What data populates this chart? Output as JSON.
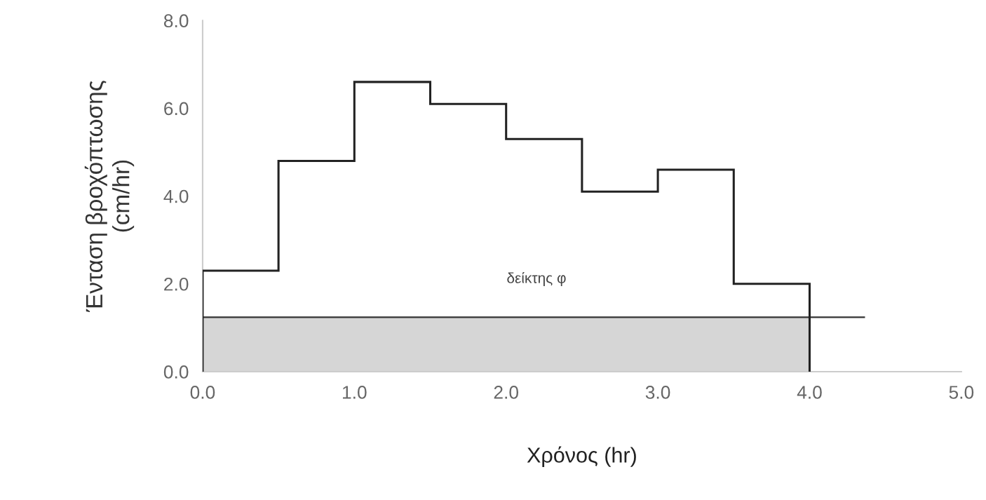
{
  "chart_data": {
    "type": "histogram",
    "xlabel": "Χρόνος (hr)",
    "ylabel": "Ένταση βροχόπτωσης\n(cm/hr)",
    "bins": [
      0,
      0.5,
      1.0,
      1.5,
      2.0,
      2.5,
      3.0,
      3.5,
      4.0
    ],
    "values": [
      2.3,
      4.8,
      6.6,
      6.1,
      5.3,
      4.1,
      4.6,
      2.0
    ],
    "color": "#222222",
    "series": [
      {
        "type": "area",
        "x": [
          0,
          4.0
        ],
        "values": [
          1.24,
          1.24
        ],
        "color": "#d6d6d6"
      }
    ],
    "ref_lines": [
      {
        "axis": "y",
        "value": 1.24,
        "color": "#333333",
        "label": "δείκτης φ"
      }
    ],
    "xlim": [
      0,
      5.0
    ],
    "ylim": [
      0,
      8.0
    ],
    "xticks": [
      {
        "value": 0,
        "label": "0.0"
      },
      {
        "value": 1,
        "label": "1.0"
      },
      {
        "value": 2,
        "label": "2.0"
      },
      {
        "value": 3,
        "label": "3.0"
      },
      {
        "value": 4,
        "label": "4.0"
      },
      {
        "value": 5,
        "label": "5.0"
      }
    ],
    "yticks": [
      {
        "value": 0,
        "label": "0.0"
      },
      {
        "value": 2,
        "label": "2.0"
      },
      {
        "value": 4,
        "label": "4.0"
      },
      {
        "value": 6,
        "label": "6.0"
      },
      {
        "value": 8,
        "label": "8.0"
      }
    ],
    "grid": false
  }
}
